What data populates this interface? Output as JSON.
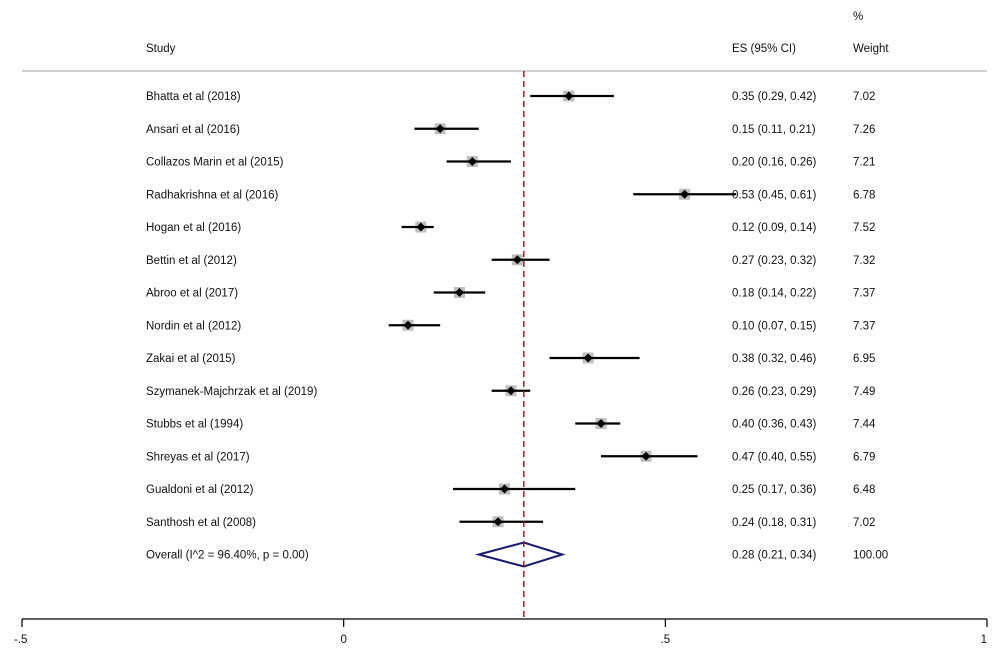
{
  "chart_data": {
    "type": "forest",
    "headers": {
      "study": "Study",
      "es": "ES (95% CI)",
      "weight_top": "%",
      "weight": "Weight"
    },
    "xlim": [
      -0.5,
      1
    ],
    "xticks": [
      {
        "value": -0.5,
        "label": "-.5"
      },
      {
        "value": 0,
        "label": "0"
      },
      {
        "value": 0.5,
        "label": ".5"
      },
      {
        "value": 1,
        "label": "1"
      }
    ],
    "reference_line": 0.28,
    "studies": [
      {
        "label": "Bhatta et al (2018)",
        "es": 0.35,
        "lo": 0.29,
        "hi": 0.42,
        "es_text": "0.35 (0.29, 0.42)",
        "weight": "7.02"
      },
      {
        "label": "Ansari et al (2016)",
        "es": 0.15,
        "lo": 0.11,
        "hi": 0.21,
        "es_text": "0.15 (0.11, 0.21)",
        "weight": "7.26"
      },
      {
        "label": "Collazos Marin et al (2015)",
        "es": 0.2,
        "lo": 0.16,
        "hi": 0.26,
        "es_text": "0.20 (0.16, 0.26)",
        "weight": "7.21"
      },
      {
        "label": "Radhakrishna et al (2016)",
        "es": 0.53,
        "lo": 0.45,
        "hi": 0.61,
        "es_text": "0.53 (0.45, 0.61)",
        "weight": "6.78"
      },
      {
        "label": "Hogan et al (2016)",
        "es": 0.12,
        "lo": 0.09,
        "hi": 0.14,
        "es_text": "0.12 (0.09, 0.14)",
        "weight": "7.52"
      },
      {
        "label": "Bettin et al (2012)",
        "es": 0.27,
        "lo": 0.23,
        "hi": 0.32,
        "es_text": "0.27 (0.23, 0.32)",
        "weight": "7.32"
      },
      {
        "label": "Abroo et al (2017)",
        "es": 0.18,
        "lo": 0.14,
        "hi": 0.22,
        "es_text": "0.18 (0.14, 0.22)",
        "weight": "7.37"
      },
      {
        "label": "Nordin et al (2012)",
        "es": 0.1,
        "lo": 0.07,
        "hi": 0.15,
        "es_text": "0.10 (0.07, 0.15)",
        "weight": "7.37"
      },
      {
        "label": "Zakai et al (2015)",
        "es": 0.38,
        "lo": 0.32,
        "hi": 0.46,
        "es_text": "0.38 (0.32, 0.46)",
        "weight": "6.95"
      },
      {
        "label": "Szymanek-Majchrzak et al (2019)",
        "es": 0.26,
        "lo": 0.23,
        "hi": 0.29,
        "es_text": "0.26 (0.23, 0.29)",
        "weight": "7.49"
      },
      {
        "label": "Stubbs et al (1994)",
        "es": 0.4,
        "lo": 0.36,
        "hi": 0.43,
        "es_text": "0.40 (0.36, 0.43)",
        "weight": "7.44"
      },
      {
        "label": "Shreyas et al (2017)",
        "es": 0.47,
        "lo": 0.4,
        "hi": 0.55,
        "es_text": "0.47 (0.40, 0.55)",
        "weight": "6.79"
      },
      {
        "label": "Gualdoni et al (2012)",
        "es": 0.25,
        "lo": 0.17,
        "hi": 0.36,
        "es_text": "0.25 (0.17, 0.36)",
        "weight": "6.48"
      },
      {
        "label": "Santhosh et al (2008)",
        "es": 0.24,
        "lo": 0.18,
        "hi": 0.31,
        "es_text": "0.24 (0.18, 0.31)",
        "weight": "7.02"
      }
    ],
    "overall": {
      "label": "Overall  (I^2 = 96.40%, p = 0.00)",
      "es": 0.28,
      "lo": 0.21,
      "hi": 0.34,
      "es_text": "0.28 (0.21, 0.34)",
      "weight": "100.00"
    },
    "colors": {
      "marker": "#000000",
      "box": "#bfbfbf",
      "ref_line": "#8b1a1a",
      "diamond": "#1a1a6e"
    }
  }
}
